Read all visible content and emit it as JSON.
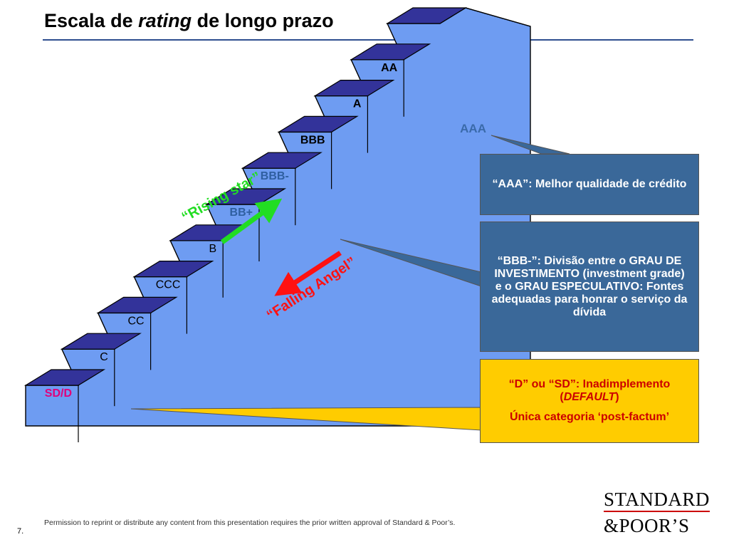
{
  "title": {
    "prefix": "Escala de",
    "emphasis": "rating",
    "suffix": "de longo prazo"
  },
  "ratings": [
    {
      "label": "AAA",
      "color": "#3a6aaa"
    },
    {
      "label": "AA",
      "color": "#000000"
    },
    {
      "label": "A",
      "color": "#000000"
    },
    {
      "label": "BBB",
      "color": "#000000"
    },
    {
      "label": "BBB-",
      "color": "#2f5fa0"
    },
    {
      "label": "BB+",
      "color": "#2f5fa0"
    },
    {
      "label": "B",
      "color": "#000000"
    },
    {
      "label": "CCC",
      "color": "#000000"
    },
    {
      "label": "CC",
      "color": "#000000"
    },
    {
      "label": "C",
      "color": "#000000"
    },
    {
      "label": "SD/D",
      "color": "#e0007a"
    }
  ],
  "arrows": {
    "rising": {
      "label": "“Rising star”",
      "color": "#22dd22"
    },
    "falling": {
      "label": "“Falling Angel”",
      "color": "#ff1111"
    }
  },
  "callouts": {
    "aaa": {
      "text": "“AAA”: Melhor qualidade de crédito"
    },
    "bbb_minus": {
      "text": "“BBB-”: Divisão entre o GRAU DE INVESTIMENTO (investment grade) e o GRAU ESPECULATIVO: Fontes adequadas para honrar o serviço da dívida"
    },
    "default": {
      "line1_prefix": "“D” ou “SD”: Inadimplemento (",
      "line1_emphasis": "DEFAULT",
      "line1_suffix": ")",
      "line2": "Única categoria ‘post-factum’"
    }
  },
  "colors": {
    "stair_front": "#6e9cf2",
    "stair_top": "#33339a",
    "callout_blue": "#3a6899",
    "callout_yellow": "#ffcc00"
  },
  "footer": {
    "note": "Permission to reprint or distribute any content from this presentation requires the prior written approval of Standard & Poor’s.",
    "page_number": "7."
  },
  "logo": {
    "line1": "STANDARD",
    "line2": "&POOR’S"
  }
}
